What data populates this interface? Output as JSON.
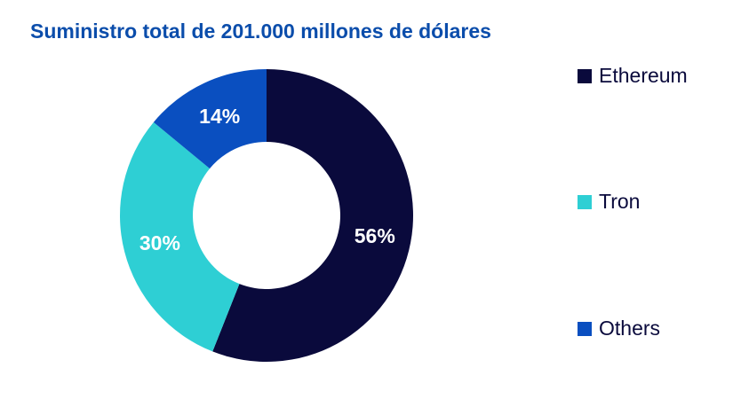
{
  "chart_data": {
    "type": "pie",
    "title": "Suministro total de 201.000 millones de dólares",
    "donut": true,
    "legend_position": "right",
    "slices": [
      {
        "label": "Ethereum",
        "value": 56,
        "display": "56%",
        "color": "#0a0a3c"
      },
      {
        "label": "Tron",
        "value": 30,
        "display": "30%",
        "color": "#2ecfd4"
      },
      {
        "label": "Others",
        "value": 14,
        "display": "14%",
        "color": "#0a4fc0"
      }
    ]
  }
}
